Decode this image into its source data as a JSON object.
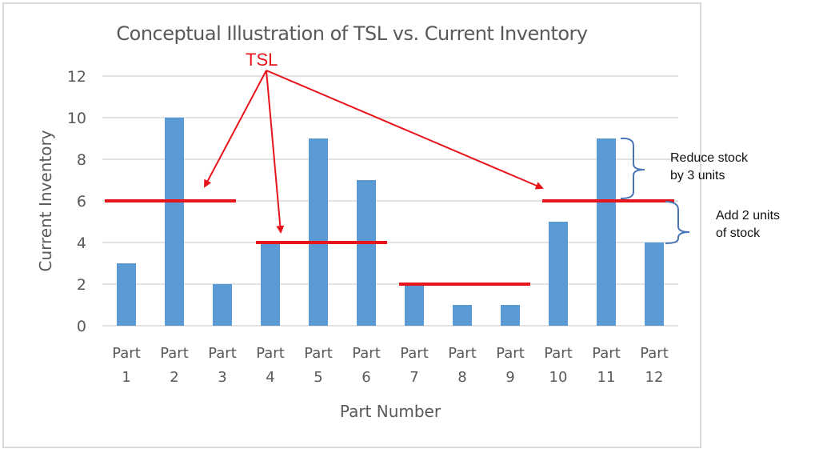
{
  "chart_data": {
    "type": "bar",
    "title": "Conceptual Illustration of TSL vs. Current Inventory",
    "xlabel": "Part Number",
    "ylabel": "Current Inventory",
    "ylim": [
      0,
      12
    ],
    "yticks": [
      0,
      2,
      4,
      6,
      8,
      10,
      12
    ],
    "grid": true,
    "legend": null,
    "categories": [
      "Part 1",
      "Part 2",
      "Part 3",
      "Part 4",
      "Part 5",
      "Part 6",
      "Part 7",
      "Part 8",
      "Part 9",
      "Part 10",
      "Part 11",
      "Part 12"
    ],
    "values": [
      3,
      10,
      2,
      4,
      9,
      7,
      2,
      1,
      1,
      5,
      9,
      4
    ],
    "bar_color": "#5b9bd5",
    "tsl_lines": [
      {
        "level": 6,
        "parts": [
          "Part 1",
          "Part 2",
          "Part 3"
        ]
      },
      {
        "level": 4,
        "parts": [
          "Part 4",
          "Part 5",
          "Part 6"
        ]
      },
      {
        "level": 2,
        "parts": [
          "Part 7",
          "Part 8",
          "Part 9"
        ]
      },
      {
        "level": 6,
        "parts": [
          "Part 10",
          "Part 11",
          "Part 12"
        ]
      }
    ],
    "tsl_color": "#e8141b",
    "annotations": [
      {
        "text": "TSL",
        "color": "#e8141b",
        "points_to": "all TSL lines"
      },
      {
        "text": "Reduce stock by 3 units",
        "target": "Part 11"
      },
      {
        "text": "Add 2 units of stock",
        "target": "Part 12"
      }
    ]
  },
  "labels": {
    "title": "Conceptual Illustration of TSL vs. Current Inventory",
    "xlabel": "Part Number",
    "ylabel": "Current Inventory",
    "tsl": "TSL",
    "reduce_line1": "Reduce stock",
    "reduce_line2": "by 3 units",
    "add_line1": "Add 2 units",
    "add_line2": "of stock"
  }
}
